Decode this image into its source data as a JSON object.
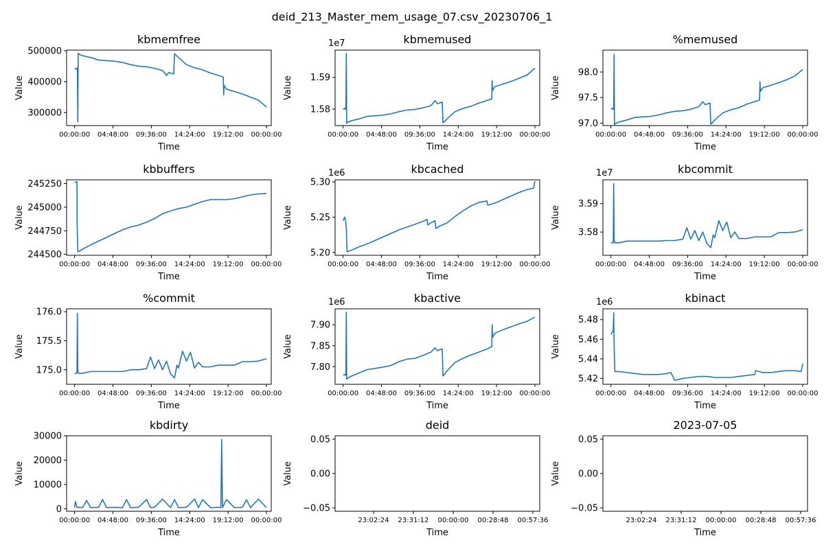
{
  "figure_title": "deid_213_Master_mem_usage_07.csv_20230706_1",
  "colors": {
    "series": "#1f77b4",
    "axes": "#000000",
    "background": "#ffffff"
  },
  "time_ticks_day": [
    "00:00:00",
    "04:48:00",
    "09:36:00",
    "14:24:00",
    "19:12:00",
    "00:00:00"
  ],
  "time_ticks_short": [
    "23:02:24",
    "23:31:12",
    "00:00:00",
    "00:28:48",
    "00:57:36"
  ],
  "chart_data": [
    {
      "type": "line",
      "title": "kbmemfree",
      "xlabel": "Time",
      "ylabel": "Value",
      "xlim": [
        -1,
        24.6
      ],
      "ylim": [
        258000,
        502000
      ],
      "offset_label": "",
      "yticks": [
        300000,
        400000,
        500000
      ],
      "ytick_labels": [
        "300000",
        "400000",
        "500000"
      ],
      "xtick_labels": [
        "00:00:00",
        "04:48:00",
        "09:36:00",
        "14:24:00",
        "19:12:00",
        "00:00:00"
      ],
      "x": [
        0,
        0.25,
        0.35,
        0.4,
        0.45,
        0.5,
        0.6,
        1,
        2,
        3,
        4,
        5,
        6,
        7,
        8,
        9,
        10,
        11,
        11.5,
        11.8,
        12,
        12.4,
        12.5,
        12.6,
        13,
        14,
        15,
        16,
        17,
        18,
        18.6,
        18.65,
        18.7,
        19,
        20,
        21,
        22,
        23,
        24
      ],
      "y": [
        443000,
        440000,
        445000,
        270000,
        492000,
        490000,
        488000,
        484000,
        478000,
        470000,
        468000,
        466000,
        462000,
        455000,
        450000,
        448000,
        443000,
        436000,
        420000,
        430000,
        428000,
        425000,
        490000,
        488000,
        478000,
        455000,
        445000,
        438000,
        428000,
        420000,
        415000,
        357000,
        388000,
        376000,
        368000,
        360000,
        350000,
        340000,
        318000
      ]
    },
    {
      "type": "line",
      "title": "kbmemused",
      "xlabel": "Time",
      "ylabel": "Value",
      "xlim": [
        -1,
        24.6
      ],
      "ylim": [
        15748000,
        15986000
      ],
      "offset_label": "1e7",
      "yticks": [
        15800000,
        15900000
      ],
      "ytick_labels": [
        "1.58",
        "1.59"
      ],
      "xtick_labels": [
        "00:00:00",
        "04:48:00",
        "09:36:00",
        "14:24:00",
        "19:12:00",
        "00:00:00"
      ],
      "x": [
        0,
        0.25,
        0.35,
        0.4,
        0.45,
        0.5,
        0.6,
        1,
        2,
        3,
        4,
        5,
        6,
        7,
        8,
        9,
        10,
        11,
        11.5,
        11.8,
        12,
        12.4,
        12.5,
        12.6,
        13,
        14,
        15,
        16,
        17,
        18,
        18.6,
        18.65,
        18.7,
        19,
        20,
        21,
        22,
        23,
        24
      ],
      "y": [
        15800000,
        15803000,
        15798000,
        15975000,
        15755000,
        15757000,
        15759000,
        15763000,
        15769000,
        15777000,
        15779000,
        15781000,
        15785000,
        15792000,
        15797000,
        15799000,
        15804000,
        15811000,
        15827000,
        15817000,
        15819000,
        15822000,
        15757000,
        15759000,
        15769000,
        15792000,
        15802000,
        15809000,
        15819000,
        15827000,
        15832000,
        15890000,
        15859000,
        15871000,
        15879000,
        15887000,
        15897000,
        15907000,
        15929000
      ]
    },
    {
      "type": "line",
      "title": "%memused",
      "xlabel": "Time",
      "ylabel": "Value",
      "xlim": [
        -1,
        24.6
      ],
      "ylim": [
        96.95,
        98.43
      ],
      "offset_label": "",
      "yticks": [
        97.0,
        97.5,
        98.0
      ],
      "ytick_labels": [
        "97.0",
        "97.5",
        "98.0"
      ],
      "xtick_labels": [
        "00:00:00",
        "04:48:00",
        "09:36:00",
        "14:24:00",
        "19:12:00",
        "00:00:00"
      ],
      "x": [
        0,
        0.25,
        0.35,
        0.4,
        0.45,
        0.5,
        0.6,
        1,
        2,
        3,
        4,
        5,
        6,
        7,
        8,
        9,
        10,
        11,
        11.5,
        11.8,
        12,
        12.4,
        12.5,
        12.6,
        13,
        14,
        15,
        16,
        17,
        18,
        18.6,
        18.65,
        18.7,
        19,
        20,
        21,
        22,
        23,
        24
      ],
      "y": [
        97.27,
        97.29,
        97.26,
        98.35,
        96.97,
        96.98,
        96.99,
        97.02,
        97.06,
        97.11,
        97.12,
        97.13,
        97.16,
        97.2,
        97.23,
        97.24,
        97.27,
        97.32,
        97.42,
        97.36,
        97.37,
        97.39,
        96.98,
        96.99,
        97.06,
        97.2,
        97.26,
        97.3,
        97.37,
        97.42,
        97.45,
        97.81,
        97.62,
        97.69,
        97.74,
        97.79,
        97.85,
        97.92,
        98.05
      ]
    },
    {
      "type": "line",
      "title": "kbbuffers",
      "xlabel": "Time",
      "ylabel": "Value",
      "xlim": [
        -1,
        24.6
      ],
      "ylim": [
        244490,
        245290
      ],
      "offset_label": "",
      "yticks": [
        244500,
        244750,
        245000,
        245250
      ],
      "ytick_labels": [
        "244500",
        "244750",
        "245000",
        "245250"
      ],
      "xtick_labels": [
        "00:00:00",
        "04:48:00",
        "09:36:00",
        "14:24:00",
        "19:12:00",
        "00:00:00"
      ],
      "x": [
        0,
        0.3,
        0.32,
        0.4,
        0.5,
        1,
        2,
        3,
        4,
        5,
        6,
        7,
        8,
        9,
        10,
        11,
        12,
        13,
        14,
        15,
        16,
        17,
        18,
        19,
        20,
        21,
        22,
        23,
        24
      ],
      "y": [
        245265,
        245268,
        244800,
        244530,
        244530,
        244555,
        244600,
        244640,
        244680,
        244720,
        244760,
        244790,
        244810,
        244840,
        244880,
        244930,
        244960,
        244985,
        245000,
        245030,
        245060,
        245080,
        245080,
        245080,
        245090,
        245110,
        245130,
        245140,
        245145
      ]
    },
    {
      "type": "line",
      "title": "kbcached",
      "xlabel": "Time",
      "ylabel": "Value",
      "xlim": [
        -1,
        24.6
      ],
      "ylim": [
        5196000,
        5303000
      ],
      "offset_label": "1e6",
      "yticks": [
        5200000,
        5250000,
        5300000
      ],
      "ytick_labels": [
        "5.20",
        "5.25",
        "5.30"
      ],
      "xtick_labels": [
        "00:00:00",
        "04:48:00",
        "09:36:00",
        "14:24:00",
        "19:12:00",
        "00:00:00"
      ],
      "x": [
        0,
        0.2,
        0.3,
        0.4,
        0.5,
        1,
        2,
        3,
        4,
        5,
        6,
        7,
        8,
        9,
        10,
        10.5,
        10.6,
        11,
        11.5,
        11.6,
        12,
        13,
        14,
        15,
        16,
        17,
        18,
        18.1,
        19,
        20,
        21,
        22,
        23,
        23.8,
        24
      ],
      "y": [
        5245000,
        5250000,
        5246000,
        5235000,
        5201000,
        5203000,
        5208000,
        5212000,
        5217000,
        5222000,
        5227000,
        5232000,
        5236000,
        5240000,
        5244000,
        5247000,
        5239000,
        5242000,
        5245000,
        5234000,
        5237000,
        5242000,
        5251000,
        5259000,
        5266000,
        5271000,
        5273000,
        5267000,
        5270000,
        5275000,
        5280000,
        5285000,
        5289000,
        5291000,
        5301000
      ]
    },
    {
      "type": "line",
      "title": "kbcommit",
      "xlabel": "Time",
      "ylabel": "Value",
      "xlim": [
        -1,
        24.6
      ],
      "ylim": [
        35718000,
        35984000
      ],
      "offset_label": "1e7",
      "yticks": [
        35800000,
        35900000
      ],
      "ytick_labels": [
        "3.58",
        "3.59"
      ],
      "xtick_labels": [
        "00:00:00",
        "04:48:00",
        "09:36:00",
        "14:24:00",
        "19:12:00",
        "00:00:00"
      ],
      "x": [
        0,
        0.3,
        0.35,
        0.4,
        0.5,
        1,
        2,
        3,
        4,
        5,
        6,
        7,
        8,
        9,
        9.5,
        10,
        10.5,
        11,
        11.5,
        12,
        12.5,
        12.8,
        13,
        13.5,
        14,
        14.5,
        15,
        15.5,
        16,
        17,
        18,
        19,
        20,
        21,
        22,
        23,
        24
      ],
      "y": [
        35762000,
        35762000,
        35970000,
        35775000,
        35762000,
        35762000,
        35768000,
        35768000,
        35768000,
        35768000,
        35768000,
        35770000,
        35770000,
        35775000,
        35815000,
        35775000,
        35805000,
        35770000,
        35800000,
        35760000,
        35745000,
        35790000,
        35780000,
        35840000,
        35805000,
        35835000,
        35780000,
        35800000,
        35777000,
        35777000,
        35783000,
        35783000,
        35783000,
        35798000,
        35798000,
        35800000,
        35808000
      ]
    },
    {
      "type": "line",
      "title": "%commit",
      "xlabel": "Time",
      "ylabel": "Value",
      "xlim": [
        -1,
        24.6
      ],
      "ylim": [
        174.75,
        176.05
      ],
      "offset_label": "",
      "yticks": [
        175.0,
        175.5,
        176.0
      ],
      "ytick_labels": [
        "175.0",
        "175.5",
        "176.0"
      ],
      "xtick_labels": [
        "00:00:00",
        "04:48:00",
        "09:36:00",
        "14:24:00",
        "19:12:00",
        "00:00:00"
      ],
      "x": [
        0,
        0.3,
        0.35,
        0.4,
        0.5,
        1,
        2,
        3,
        4,
        5,
        6,
        7,
        8,
        9,
        9.5,
        10,
        10.5,
        11,
        11.5,
        12,
        12.5,
        12.8,
        13,
        13.5,
        14,
        14.5,
        15,
        15.5,
        16,
        17,
        18,
        19,
        20,
        21,
        22,
        23,
        24
      ],
      "y": [
        174.94,
        174.94,
        175.97,
        175.0,
        174.94,
        174.94,
        174.97,
        174.97,
        174.97,
        174.97,
        174.97,
        175.0,
        175.0,
        175.02,
        175.22,
        175.02,
        175.17,
        175.0,
        175.15,
        174.93,
        174.86,
        175.08,
        175.03,
        175.32,
        175.15,
        175.3,
        175.03,
        175.13,
        175.05,
        175.05,
        175.08,
        175.08,
        175.08,
        175.14,
        175.14,
        175.15,
        175.19
      ]
    },
    {
      "type": "line",
      "title": "kbactive",
      "xlabel": "Time",
      "ylabel": "Value",
      "xlim": [
        -1,
        24.6
      ],
      "ylim": [
        7758000,
        7938000
      ],
      "offset_label": "1e6",
      "yticks": [
        7800000,
        7850000,
        7900000
      ],
      "ytick_labels": [
        "7.80",
        "7.85",
        "7.90"
      ],
      "xtick_labels": [
        "00:00:00",
        "04:48:00",
        "09:36:00",
        "14:24:00",
        "19:12:00",
        "00:00:00"
      ],
      "x": [
        0,
        0.25,
        0.35,
        0.4,
        0.45,
        0.5,
        0.6,
        1,
        2,
        3,
        4,
        5,
        6,
        7,
        8,
        9,
        10,
        11,
        11.5,
        11.8,
        12,
        12.4,
        12.5,
        12.6,
        13,
        14,
        15,
        16,
        17,
        18,
        18.6,
        18.65,
        18.7,
        19,
        20,
        21,
        22,
        23,
        24
      ],
      "y": [
        7780000,
        7782000,
        7779000,
        7930000,
        7770000,
        7771000,
        7773000,
        7777000,
        7785000,
        7793000,
        7796000,
        7799000,
        7803000,
        7812000,
        7818000,
        7820000,
        7827000,
        7835000,
        7845000,
        7838000,
        7840000,
        7842000,
        7778000,
        7780000,
        7790000,
        7810000,
        7820000,
        7828000,
        7835000,
        7842000,
        7848000,
        7900000,
        7870000,
        7880000,
        7888000,
        7895000,
        7902000,
        7908000,
        7918000
      ]
    },
    {
      "type": "line",
      "title": "kbinact",
      "xlabel": "Time",
      "ylabel": "Value",
      "xlim": [
        -1,
        24.6
      ],
      "ylim": [
        5414000,
        5491000
      ],
      "offset_label": "1e6",
      "yticks": [
        5420000,
        5440000,
        5460000,
        5480000
      ],
      "ytick_labels": [
        "5.42",
        "5.44",
        "5.46",
        "5.48"
      ],
      "xtick_labels": [
        "00:00:00",
        "04:48:00",
        "09:36:00",
        "14:24:00",
        "19:12:00",
        "00:00:00"
      ],
      "x": [
        0,
        0.25,
        0.3,
        0.35,
        0.4,
        0.5,
        1,
        2,
        3,
        4,
        5,
        6,
        7,
        7.5,
        8,
        9,
        10,
        11,
        12,
        13,
        14,
        15,
        16,
        17,
        18,
        18.1,
        19,
        20,
        21,
        22,
        23,
        23.8,
        24
      ],
      "y": [
        5465000,
        5468000,
        5470000,
        5487000,
        5455000,
        5427000,
        5427000,
        5426000,
        5425000,
        5424000,
        5424000,
        5424000,
        5425000,
        5426000,
        5418000,
        5420000,
        5421000,
        5422000,
        5422000,
        5421000,
        5421000,
        5421000,
        5422000,
        5423000,
        5424000,
        5428000,
        5426000,
        5426000,
        5427000,
        5428000,
        5428000,
        5427000,
        5435000
      ]
    },
    {
      "type": "line",
      "title": "kbdirty",
      "xlabel": "Time",
      "ylabel": "Value",
      "xlim": [
        -1,
        24.6
      ],
      "ylim": [
        -1000,
        30000
      ],
      "offset_label": "",
      "yticks": [
        0,
        10000,
        20000,
        30000
      ],
      "ytick_labels": [
        "0",
        "10000",
        "20000",
        "30000"
      ],
      "xtick_labels": [
        "00:00:00",
        "04:48:00",
        "09:36:00",
        "14:24:00",
        "19:12:00",
        "00:00:00"
      ],
      "x": [
        0,
        0.1,
        0.3,
        0.5,
        1,
        1.5,
        2,
        3,
        3.5,
        4,
        5,
        6,
        6.5,
        7,
        8,
        9,
        9.5,
        10,
        11,
        12,
        12.5,
        13,
        14,
        15,
        15.5,
        16,
        17,
        18,
        18.3,
        18.4,
        18.5,
        19,
        20,
        21,
        21.5,
        22,
        23,
        24
      ],
      "y": [
        500,
        3000,
        500,
        600,
        500,
        3500,
        500,
        600,
        3800,
        500,
        600,
        500,
        3800,
        500,
        600,
        3800,
        500,
        600,
        4000,
        500,
        3800,
        500,
        600,
        4000,
        500,
        3800,
        500,
        600,
        500,
        28500,
        500,
        3800,
        500,
        600,
        3800,
        500,
        4000,
        500
      ]
    },
    {
      "type": "line",
      "title": "deid",
      "xlabel": "Time",
      "ylabel": "Value",
      "xlim": [
        0,
        1
      ],
      "ylim": [
        -0.055,
        0.055
      ],
      "offset_label": "",
      "yticks": [
        -0.05,
        0.0,
        0.05
      ],
      "ytick_labels": [
        "−0.05",
        "0.00",
        "0.05"
      ],
      "xtick_labels": [
        "23:02:24",
        "23:31:12",
        "00:00:00",
        "00:28:48",
        "00:57:36"
      ],
      "x": [],
      "y": []
    },
    {
      "type": "line",
      "title": "2023-07-05",
      "xlabel": "Time",
      "ylabel": "Value",
      "xlim": [
        0,
        1
      ],
      "ylim": [
        -0.055,
        0.055
      ],
      "offset_label": "",
      "yticks": [
        -0.05,
        0.0,
        0.05
      ],
      "ytick_labels": [
        "−0.05",
        "0.00",
        "0.05"
      ],
      "xtick_labels": [
        "23:02:24",
        "23:31:12",
        "00:00:00",
        "00:28:48",
        "00:57:36"
      ],
      "x": [],
      "y": []
    }
  ]
}
